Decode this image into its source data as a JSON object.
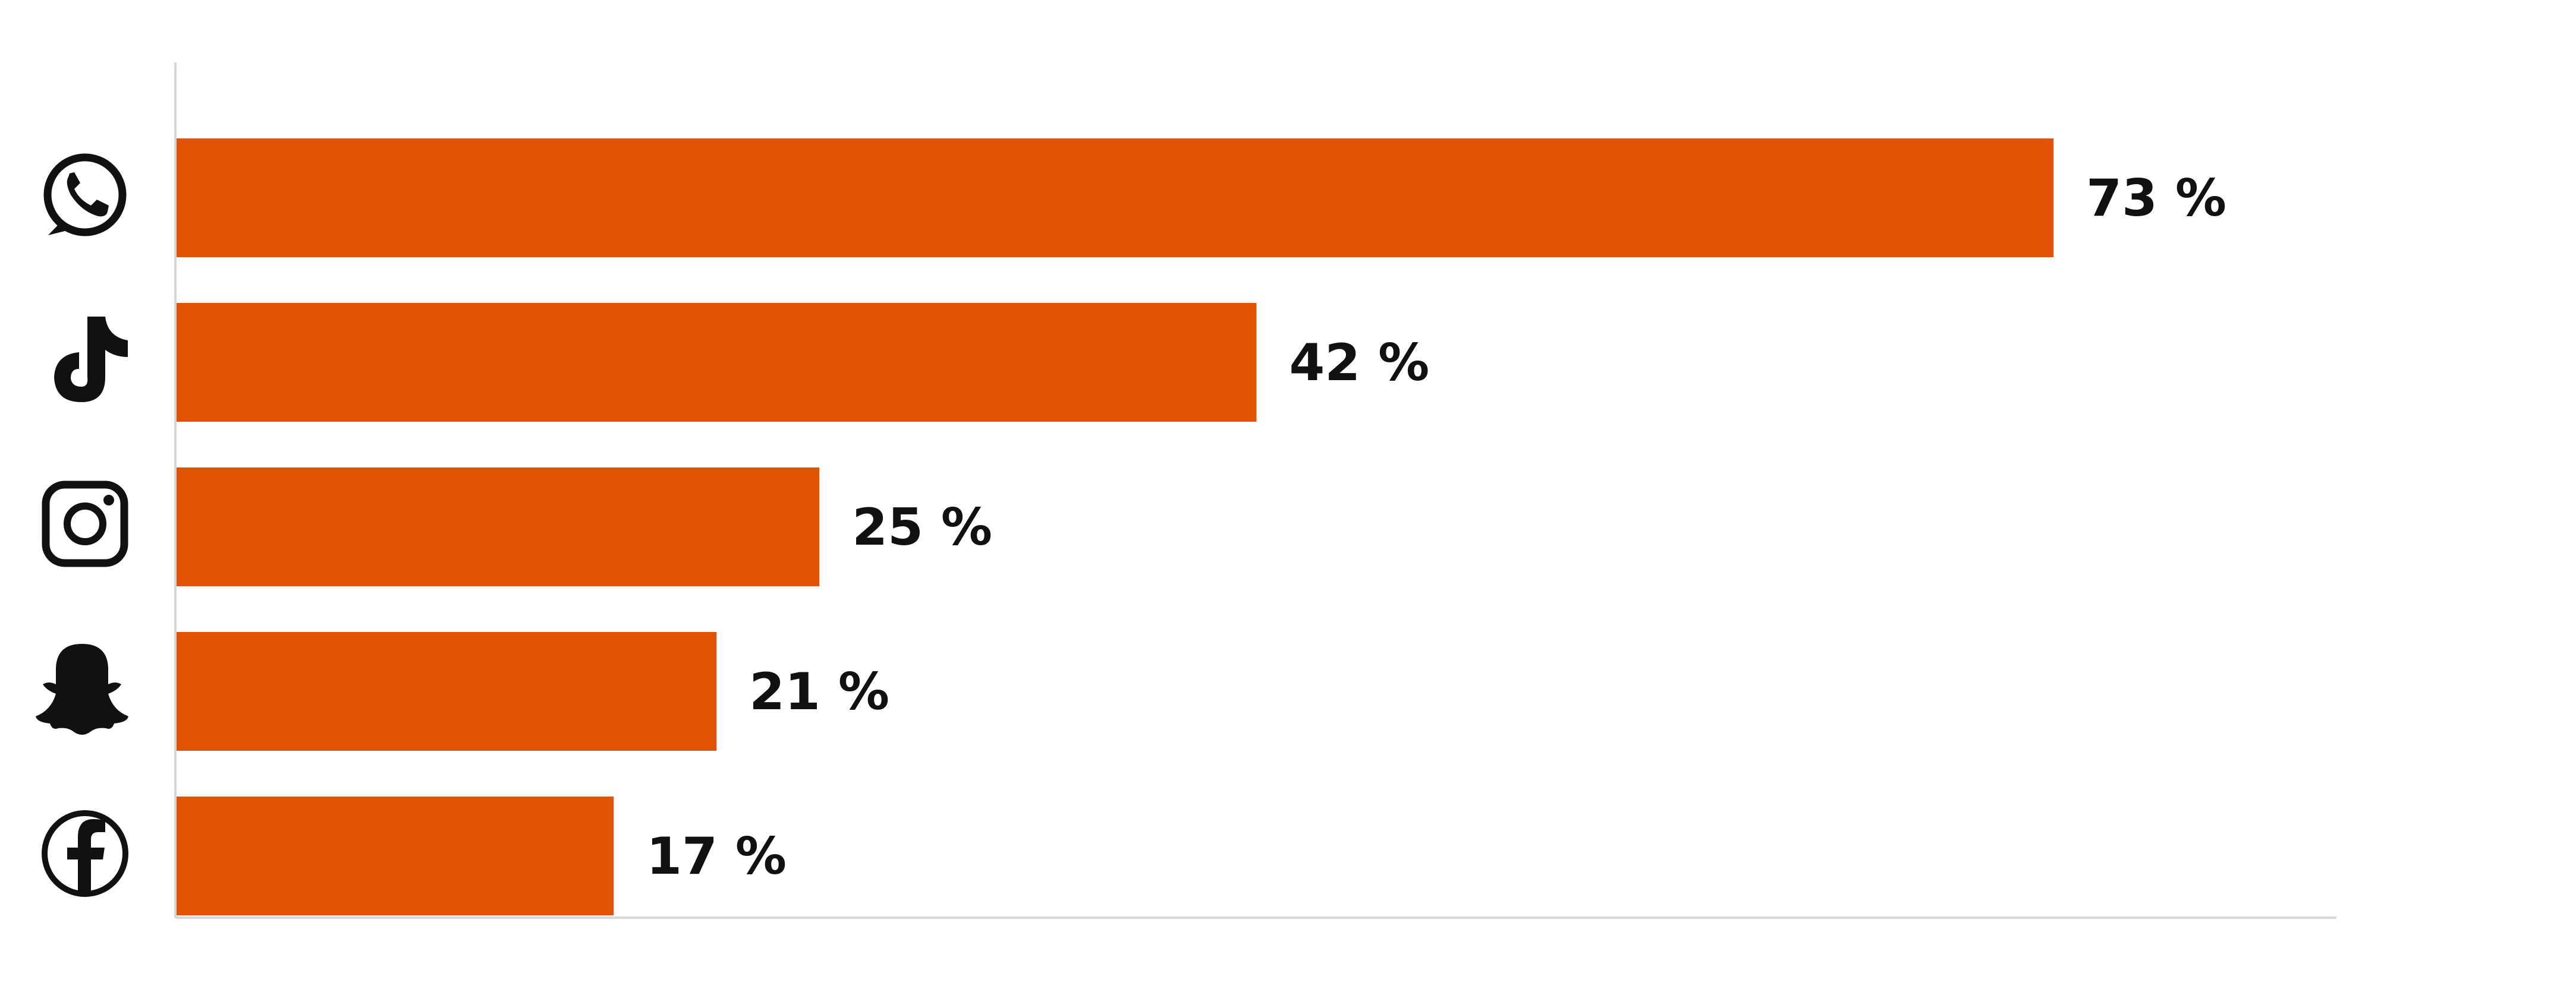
{
  "chart_data": {
    "type": "bar",
    "orientation": "horizontal",
    "categories": [
      "WhatsApp",
      "TikTok",
      "Instagram",
      "Snapchat",
      "Facebook"
    ],
    "icons": [
      "whatsapp-icon",
      "tiktok-icon",
      "instagram-icon",
      "snapchat-icon",
      "facebook-icon"
    ],
    "values": [
      73,
      42,
      25,
      21,
      17
    ],
    "value_labels": [
      "73 %",
      "42 %",
      "25 %",
      "21 %",
      "17 %"
    ],
    "xlim": [
      0,
      84
    ],
    "unit": "%",
    "grid": false,
    "legend": "none",
    "bar_color": "#E25205",
    "title": "",
    "xlabel": "",
    "ylabel": ""
  }
}
